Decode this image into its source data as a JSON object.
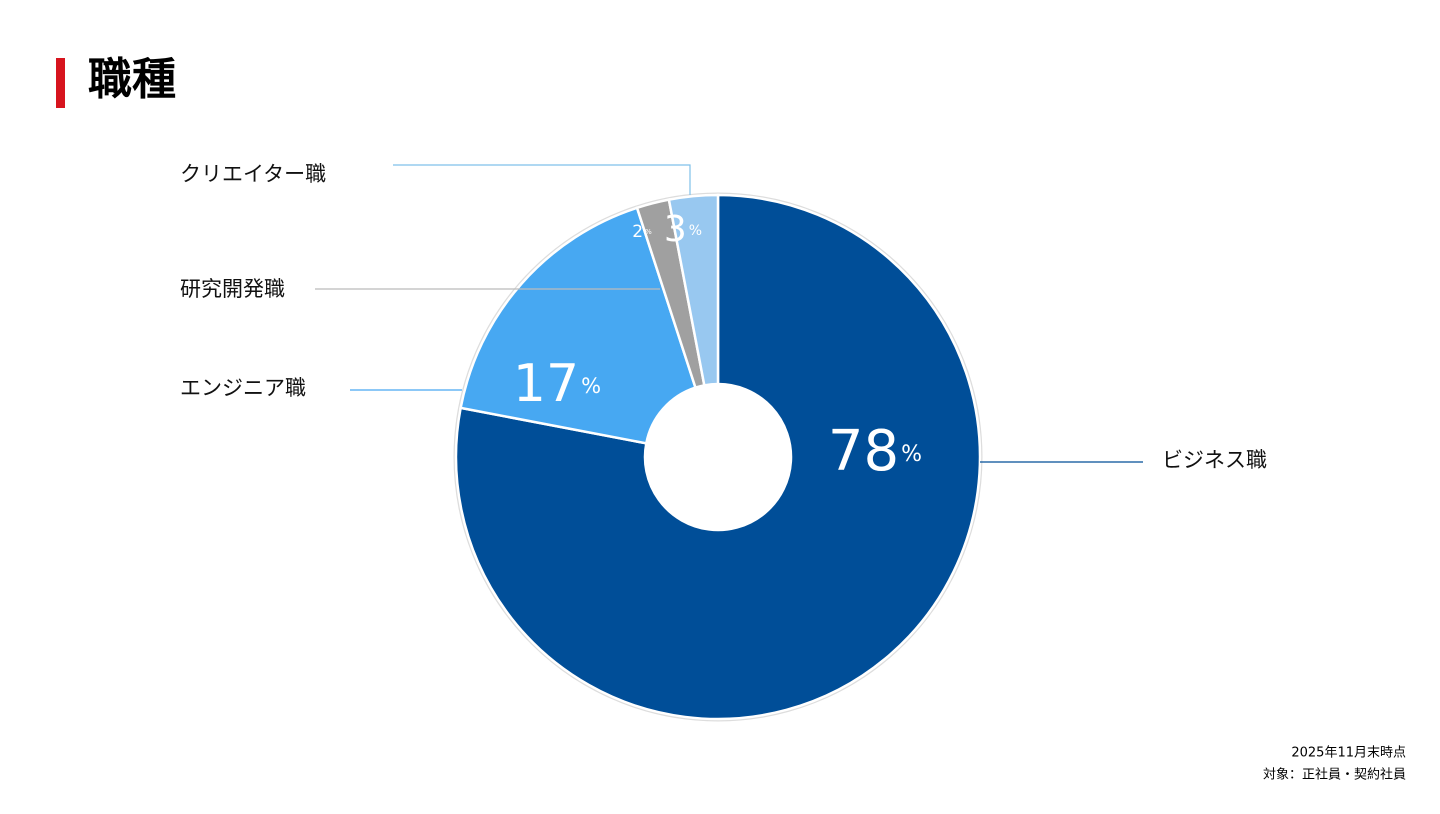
{
  "header": {
    "title": "職種"
  },
  "chart_data": {
    "type": "donut",
    "categories": [
      "ビジネス職",
      "エンジニア職",
      "研究開発職",
      "クリエイター職"
    ],
    "values": [
      78,
      17,
      2,
      3
    ],
    "colors": [
      "#004e98",
      "#47a8f2",
      "#a0a0a0",
      "#98c8f0"
    ],
    "unit": "%"
  },
  "footnotes": [
    "2025年11月末時点",
    "対象：正社員・契約社員"
  ]
}
